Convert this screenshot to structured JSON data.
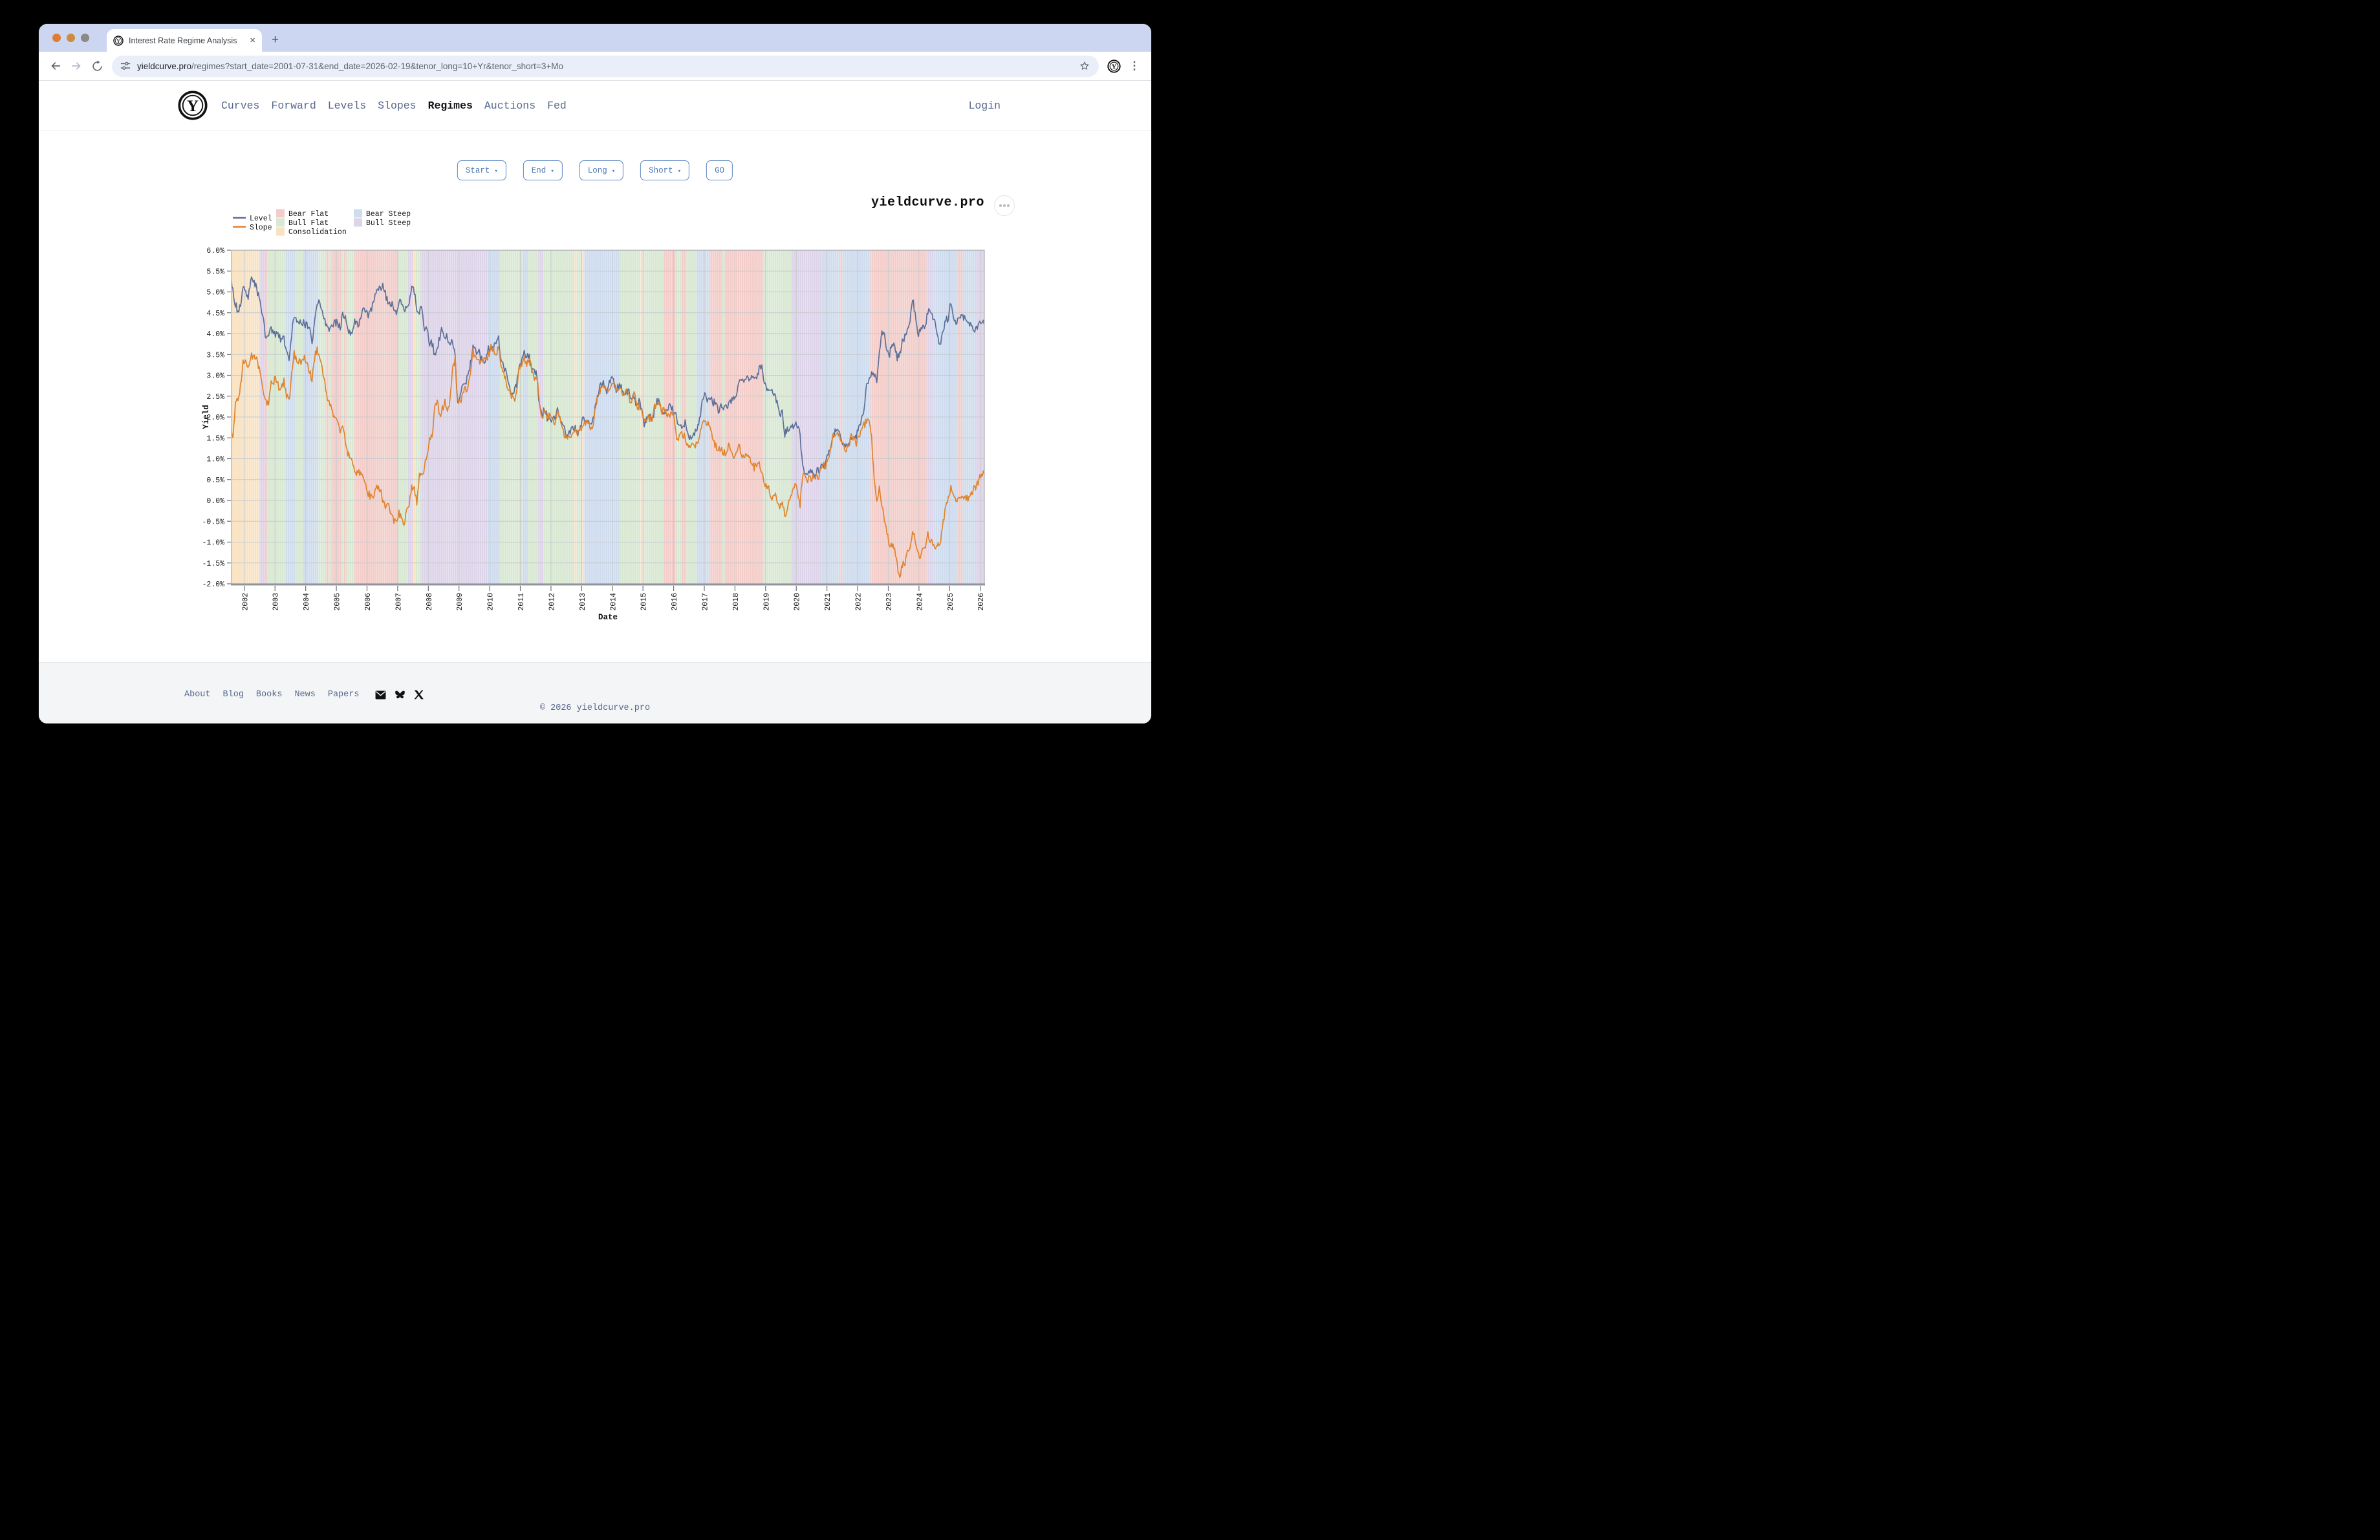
{
  "window": {
    "traffic_lights": [
      "#df7b37",
      "#cd8b3e",
      "#8b8987"
    ],
    "tab": {
      "title": "Interest Rate Regime Analysis",
      "close_icon": "×"
    },
    "new_tab_icon": "+",
    "menu_icon_name": "kebab-menu"
  },
  "toolbar": {
    "url_domain": "yieldcurve.pro",
    "url_path": "/regimes?start_date=2001-07-31&end_date=2026-02-19&tenor_long=10+Yr&tenor_short=3+Mo"
  },
  "header": {
    "logo_letter": "Y",
    "nav": [
      "Curves",
      "Forward",
      "Levels",
      "Slopes",
      "Regimes",
      "Auctions",
      "Fed"
    ],
    "active": "Regimes",
    "login": "Login"
  },
  "filters": {
    "items": [
      "Start",
      "End",
      "Long",
      "Short"
    ],
    "caret": "▾",
    "go": "GO"
  },
  "brand": {
    "title": "yieldcurve.pro"
  },
  "footer": {
    "links": [
      "About",
      "Blog",
      "Books",
      "News",
      "Papers"
    ],
    "icons": [
      "email-icon",
      "bluesky-icon",
      "x-icon"
    ],
    "copyright": "© 2026 yieldcurve.pro"
  },
  "chart_data": {
    "type": "line",
    "title": "yieldcurve.pro",
    "xlabel": "Date",
    "ylabel": "Yield",
    "ylim": [
      -2.0,
      6.0
    ],
    "ytick_step": 0.5,
    "x_range": [
      "2001-07-31",
      "2026-02-19"
    ],
    "xticks": [
      2002,
      2003,
      2004,
      2005,
      2006,
      2007,
      2008,
      2009,
      2010,
      2011,
      2012,
      2013,
      2014,
      2015,
      2016,
      2017,
      2018,
      2019,
      2020,
      2021,
      2022,
      2023,
      2024,
      2025,
      2026
    ],
    "frequency": "monthly",
    "x_start_month": "2001-07",
    "legend_position": "upper left",
    "grid": true,
    "series": [
      {
        "name": "Level",
        "color": "#5c6f99",
        "values": [
          5.24,
          4.97,
          4.73,
          4.57,
          4.65,
          5.09,
          5.04,
          4.91,
          5.28,
          5.21,
          5.16,
          4.93,
          4.65,
          4.26,
          3.87,
          3.94,
          4.05,
          4.03,
          4.05,
          3.9,
          3.81,
          3.96,
          3.57,
          3.33,
          3.98,
          4.45,
          4.27,
          4.29,
          4.3,
          4.27,
          4.15,
          4.08,
          3.83,
          4.35,
          4.72,
          4.73,
          4.5,
          4.28,
          4.13,
          4.1,
          4.19,
          4.23,
          4.22,
          4.17,
          4.5,
          4.34,
          4.14,
          4.0,
          4.18,
          4.26,
          4.2,
          4.46,
          4.54,
          4.47,
          4.42,
          4.57,
          4.72,
          4.99,
          5.11,
          5.11,
          5.09,
          4.88,
          4.72,
          4.73,
          4.6,
          4.56,
          4.76,
          4.72,
          4.56,
          4.69,
          4.75,
          5.1,
          5.0,
          4.67,
          4.52,
          4.53,
          4.15,
          4.1,
          3.74,
          3.74,
          3.51,
          3.68,
          3.88,
          4.1,
          4.01,
          3.89,
          3.69,
          3.81,
          3.53,
          2.25,
          2.45,
          2.87,
          2.82,
          2.93,
          3.29,
          3.72,
          3.56,
          3.59,
          3.4,
          3.39,
          3.4,
          3.59,
          3.73,
          3.69,
          3.73,
          3.85,
          3.42,
          3.2,
          3.01,
          2.7,
          2.65,
          2.54,
          2.76,
          3.29,
          3.39,
          3.58,
          3.41,
          3.46,
          3.17,
          3.0,
          3.0,
          2.3,
          1.98,
          2.15,
          2.01,
          1.98,
          1.97,
          1.97,
          2.17,
          2.05,
          1.8,
          1.62,
          1.53,
          1.68,
          1.72,
          1.75,
          1.65,
          1.72,
          1.91,
          1.98,
          1.96,
          1.76,
          1.93,
          2.3,
          2.58,
          2.74,
          2.81,
          2.62,
          2.72,
          2.9,
          2.86,
          2.71,
          2.72,
          2.71,
          2.56,
          2.6,
          2.54,
          2.42,
          2.53,
          2.3,
          2.33,
          2.21,
          1.88,
          1.98,
          2.04,
          1.94,
          2.2,
          2.36,
          2.32,
          2.17,
          2.17,
          2.07,
          2.26,
          2.24,
          2.09,
          1.78,
          1.89,
          1.81,
          1.81,
          1.64,
          1.5,
          1.56,
          1.63,
          1.76,
          2.14,
          2.49,
          2.43,
          2.42,
          2.48,
          2.3,
          2.3,
          2.19,
          2.32,
          2.21,
          2.2,
          2.36,
          2.35,
          2.4,
          2.58,
          2.86,
          2.84,
          2.87,
          2.98,
          2.91,
          2.89,
          2.89,
          3.0,
          3.15,
          3.12,
          2.83,
          2.71,
          2.68,
          2.57,
          2.53,
          2.4,
          2.07,
          2.06,
          1.63,
          1.7,
          1.71,
          1.81,
          1.86,
          1.76,
          1.5,
          0.87,
          0.66,
          0.67,
          0.73,
          0.62,
          0.65,
          0.68,
          0.79,
          0.87,
          0.93,
          1.08,
          1.26,
          1.61,
          1.64,
          1.62,
          1.52,
          1.32,
          1.28,
          1.37,
          1.58,
          1.56,
          1.47,
          1.76,
          1.93,
          2.13,
          2.75,
          2.9,
          3.14,
          2.9,
          2.9,
          3.52,
          3.98,
          3.89,
          3.62,
          3.53,
          3.75,
          3.66,
          3.46,
          3.57,
          3.75,
          3.9,
          4.17,
          4.38,
          4.8,
          4.5,
          4.02,
          4.06,
          4.21,
          4.21,
          4.54,
          4.48,
          4.31,
          4.25,
          3.87,
          3.72,
          4.1,
          4.36,
          4.39,
          4.7,
          4.45,
          4.28,
          4.28,
          4.42,
          4.38,
          4.39,
          4.26,
          4.15,
          4.1,
          4.1,
          4.18,
          4.25,
          4.3
        ]
      },
      {
        "name": "Slope",
        "color": "#e0832d",
        "values": [
          1.65,
          1.55,
          2.33,
          2.35,
          2.75,
          3.35,
          3.39,
          3.17,
          3.5,
          3.48,
          3.42,
          3.23,
          2.97,
          2.63,
          2.29,
          2.36,
          2.82,
          2.83,
          2.88,
          2.72,
          2.67,
          2.84,
          2.48,
          2.4,
          3.04,
          3.48,
          3.33,
          3.36,
          3.36,
          3.36,
          3.27,
          3.14,
          2.88,
          3.41,
          3.66,
          3.4,
          3.05,
          2.78,
          2.45,
          2.34,
          2.04,
          2.01,
          1.87,
          1.61,
          1.71,
          1.46,
          1.16,
          0.97,
          0.85,
          0.76,
          0.67,
          0.56,
          0.6,
          0.47,
          0.12,
          0.05,
          0.15,
          0.35,
          0.31,
          0.17,
          0.01,
          -0.15,
          -0.16,
          -0.35,
          -0.45,
          -0.46,
          -0.36,
          -0.43,
          -0.62,
          -0.31,
          -0.12,
          0.37,
          0.25,
          -0.1,
          0.62,
          0.58,
          0.8,
          1.0,
          1.46,
          1.6,
          2.18,
          2.34,
          2.08,
          2.21,
          2.35,
          2.16,
          2.4,
          3.16,
          3.33,
          2.39,
          2.39,
          2.57,
          2.61,
          2.77,
          3.11,
          3.54,
          3.38,
          3.41,
          3.28,
          3.32,
          3.35,
          3.53,
          3.65,
          3.58,
          3.58,
          3.69,
          3.26,
          3.08,
          2.85,
          2.55,
          2.5,
          2.41,
          2.62,
          3.15,
          3.24,
          3.45,
          3.31,
          3.4,
          3.12,
          2.96,
          2.97,
          2.28,
          1.96,
          2.13,
          2.0,
          1.97,
          1.94,
          1.89,
          2.09,
          1.97,
          1.72,
          1.53,
          1.43,
          1.58,
          1.61,
          1.64,
          1.56,
          1.66,
          1.84,
          1.86,
          1.89,
          1.7,
          1.89,
          2.25,
          2.54,
          2.7,
          2.79,
          2.57,
          2.64,
          2.83,
          2.83,
          2.66,
          2.67,
          2.68,
          2.53,
          2.56,
          2.51,
          2.39,
          2.51,
          2.28,
          2.31,
          2.18,
          1.85,
          1.96,
          2.01,
          1.93,
          2.19,
          2.35,
          2.28,
          2.1,
          2.16,
          2.05,
          2.08,
          2.04,
          1.83,
          1.47,
          1.6,
          1.58,
          1.53,
          1.38,
          1.21,
          1.27,
          1.34,
          1.43,
          1.66,
          1.98,
          1.92,
          1.9,
          1.73,
          1.5,
          1.33,
          1.17,
          1.25,
          1.2,
          1.16,
          1.28,
          1.12,
          1.03,
          1.17,
          1.27,
          1.11,
          1.07,
          1.09,
          0.98,
          0.89,
          0.81,
          0.84,
          0.87,
          0.76,
          0.42,
          0.31,
          0.24,
          0.12,
          0.13,
          -0.01,
          -0.12,
          -0.06,
          -0.41,
          -0.16,
          0.06,
          0.23,
          0.32,
          0.22,
          -0.05,
          0.6,
          0.52,
          0.53,
          0.57,
          0.49,
          0.55,
          0.58,
          0.69,
          0.79,
          0.84,
          1.0,
          1.21,
          1.58,
          1.62,
          1.6,
          1.47,
          1.27,
          1.23,
          1.33,
          1.53,
          1.51,
          1.41,
          1.57,
          1.6,
          1.83,
          1.94,
          1.87,
          1.48,
          0.47,
          0.05,
          0.26,
          -0.1,
          -0.45,
          -0.78,
          -1.14,
          -1.05,
          -1.15,
          -1.6,
          -1.86,
          -1.5,
          -1.51,
          -1.28,
          -1.07,
          -0.66,
          -0.89,
          -1.35,
          -1.31,
          -1.17,
          -1.17,
          -0.85,
          -0.91,
          -1.05,
          -1.12,
          -1.1,
          -0.91,
          -0.48,
          -0.22,
          0.08,
          0.33,
          0.15,
          -0.02,
          0.01,
          0.09,
          0.05,
          0.06,
          0.09,
          0.2,
          0.25,
          0.35,
          0.55,
          0.62,
          0.55
        ]
      }
    ],
    "regime_colors": {
      "Bear Flat": "#f3cdc9",
      "Bull Flat": "#d8e8d2",
      "Consolidation": "#f9e2c1",
      "Bear Steep": "#cfdcee",
      "Bull Steep": "#ded4ea"
    },
    "regimes": [
      {
        "start": "2001-07",
        "end": "2002-07",
        "regime": "Consolidation"
      },
      {
        "start": "2002-07",
        "end": "2002-09",
        "regime": "Bull Steep"
      },
      {
        "start": "2002-09",
        "end": "2002-10",
        "regime": "Bear Flat"
      },
      {
        "start": "2002-10",
        "end": "2003-05",
        "regime": "Bull Flat"
      },
      {
        "start": "2003-05",
        "end": "2003-09",
        "regime": "Bear Steep"
      },
      {
        "start": "2003-09",
        "end": "2003-12",
        "regime": "Bull Flat"
      },
      {
        "start": "2003-12",
        "end": "2004-06",
        "regime": "Bear Steep"
      },
      {
        "start": "2004-06",
        "end": "2004-09",
        "regime": "Bull Flat"
      },
      {
        "start": "2004-09",
        "end": "2004-10",
        "regime": "Bear Flat"
      },
      {
        "start": "2004-10",
        "end": "2004-11",
        "regime": "Bull Flat"
      },
      {
        "start": "2004-11",
        "end": "2005-03",
        "regime": "Bear Flat"
      },
      {
        "start": "2005-03",
        "end": "2005-04",
        "regime": "Bull Flat"
      },
      {
        "start": "2005-04",
        "end": "2005-05",
        "regime": "Bear Flat"
      },
      {
        "start": "2005-05",
        "end": "2005-08",
        "regime": "Bull Flat"
      },
      {
        "start": "2005-08",
        "end": "2007-01",
        "regime": "Bear Flat"
      },
      {
        "start": "2007-01",
        "end": "2007-05",
        "regime": "Bull Flat"
      },
      {
        "start": "2007-05",
        "end": "2007-07",
        "regime": "Bull Steep"
      },
      {
        "start": "2007-07",
        "end": "2007-08",
        "regime": "Consolidation"
      },
      {
        "start": "2007-08",
        "end": "2007-10",
        "regime": "Bull Flat"
      },
      {
        "start": "2007-10",
        "end": "2009-12",
        "regime": "Bull Steep"
      },
      {
        "start": "2009-12",
        "end": "2010-05",
        "regime": "Bear Steep"
      },
      {
        "start": "2010-05",
        "end": "2011-02",
        "regime": "Bull Flat"
      },
      {
        "start": "2011-02",
        "end": "2011-04",
        "regime": "Bear Steep"
      },
      {
        "start": "2011-04",
        "end": "2011-08",
        "regime": "Bull Flat"
      },
      {
        "start": "2011-08",
        "end": "2011-10",
        "regime": "Bull Steep"
      },
      {
        "start": "2011-10",
        "end": "2012-10",
        "regime": "Bull Flat"
      },
      {
        "start": "2012-10",
        "end": "2012-11",
        "regime": "Consolidation"
      },
      {
        "start": "2012-11",
        "end": "2013-01",
        "regime": "Bull Flat"
      },
      {
        "start": "2013-01",
        "end": "2013-02",
        "regime": "Consolidation"
      },
      {
        "start": "2013-02",
        "end": "2014-04",
        "regime": "Bear Steep"
      },
      {
        "start": "2014-04",
        "end": "2014-12",
        "regime": "Bull Flat"
      },
      {
        "start": "2014-12",
        "end": "2015-01",
        "regime": "Consolidation"
      },
      {
        "start": "2015-01",
        "end": "2015-09",
        "regime": "Bull Flat"
      },
      {
        "start": "2015-09",
        "end": "2016-02",
        "regime": "Bear Flat"
      },
      {
        "start": "2016-02",
        "end": "2016-04",
        "regime": "Bull Flat"
      },
      {
        "start": "2016-04",
        "end": "2016-06",
        "regime": "Bear Flat"
      },
      {
        "start": "2016-06",
        "end": "2016-10",
        "regime": "Bull Flat"
      },
      {
        "start": "2016-10",
        "end": "2017-03",
        "regime": "Bear Steep"
      },
      {
        "start": "2017-03",
        "end": "2017-08",
        "regime": "Bear Flat"
      },
      {
        "start": "2017-08",
        "end": "2017-09",
        "regime": "Bull Flat"
      },
      {
        "start": "2017-09",
        "end": "2018-12",
        "regime": "Bear Flat"
      },
      {
        "start": "2018-12",
        "end": "2019-11",
        "regime": "Bull Flat"
      },
      {
        "start": "2019-11",
        "end": "2020-11",
        "regime": "Bull Steep"
      },
      {
        "start": "2020-11",
        "end": "2021-06",
        "regime": "Bear Steep"
      },
      {
        "start": "2021-06",
        "end": "2021-07",
        "regime": "Bear Flat"
      },
      {
        "start": "2021-07",
        "end": "2022-06",
        "regime": "Bear Steep"
      },
      {
        "start": "2022-06",
        "end": "2024-04",
        "regime": "Bear Flat"
      },
      {
        "start": "2024-04",
        "end": "2024-07",
        "regime": "Bull Steep"
      },
      {
        "start": "2024-07",
        "end": "2025-04",
        "regime": "Bear Steep"
      },
      {
        "start": "2025-04",
        "end": "2025-06",
        "regime": "Bear Flat"
      },
      {
        "start": "2025-06",
        "end": "2025-11",
        "regime": "Bear Steep"
      },
      {
        "start": "2025-11",
        "end": "2026-03",
        "regime": "Bull Steep"
      }
    ]
  }
}
